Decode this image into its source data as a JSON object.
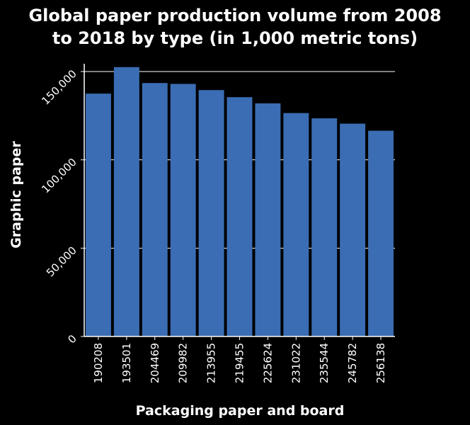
{
  "chart_data": {
    "type": "bar",
    "title_lines": [
      "Global paper production volume from 2008",
      "to 2018 by type (in 1,000 metric tons)"
    ],
    "xlabel": "Packaging paper and board",
    "ylabel": "Graphic paper",
    "categories": [
      "190208",
      "193501",
      "204469",
      "209982",
      "213955",
      "219455",
      "225624",
      "231022",
      "235544",
      "245782",
      "256138"
    ],
    "values": [
      137500,
      152500,
      143500,
      143000,
      139500,
      135500,
      132000,
      126500,
      123500,
      120500,
      116500
    ],
    "ylim": [
      0,
      150000
    ],
    "yticks": [
      0,
      50000,
      100000,
      150000
    ],
    "ytick_labels": [
      "0",
      "50,000",
      "100,000",
      "150,000"
    ],
    "grid": true,
    "colors": {
      "background": "#000000",
      "bar": "#3a6db4",
      "text": "#ffffff",
      "grid": "#ffffff"
    }
  }
}
